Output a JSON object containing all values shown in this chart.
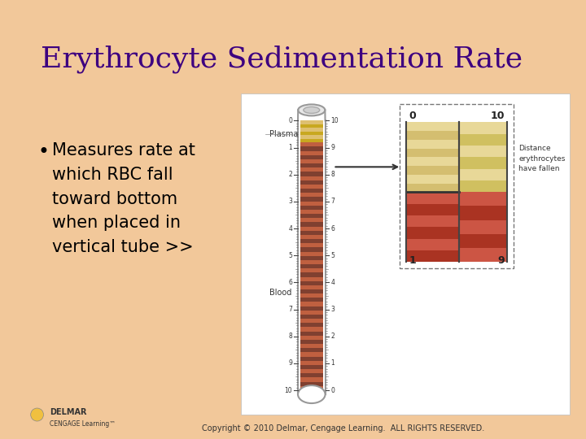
{
  "title": "Erythrocyte Sedimentation Rate",
  "title_color": "#3D0080",
  "title_fontsize": 26,
  "bg_color": "#F2C89A",
  "accent_top_color": "#4BB8D8",
  "accent_left_color": "#5CB040",
  "accent_corner_color": "#E84080",
  "bullet_text": "Measures rate at\nwhich RBC fall\ntoward bottom\nwhen placed in\nvertical tube >>",
  "bullet_fontsize": 15,
  "bullet_color": "#000000",
  "copyright_text": "Copyright © 2010 Delmar, Cengage Learning.  ALL RIGHTS RESERVED.",
  "copyright_fontsize": 7,
  "plasma_color": "#E8D090",
  "blood_color": "#C06040",
  "blood_stripe_color": "#804030",
  "plasma_stripe_color": "#C8A820",
  "diagram_bg": "#FFFFFF",
  "tube_fill_plasma": "#DEC070",
  "tube_fill_blood": "#C06840"
}
